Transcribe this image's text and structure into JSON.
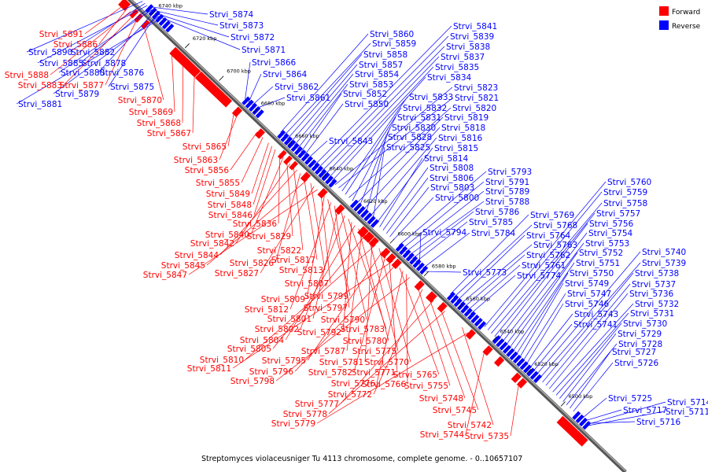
{
  "caption": "Streptomyces violaceusniger Tu 4113 chromosome, complete genome. - 0..10657107",
  "legend": [
    {
      "label": "Forward",
      "color": "#ff0000"
    },
    {
      "label": "Reverse",
      "color": "#0000ff"
    }
  ],
  "colors": {
    "forward": "#ff0000",
    "reverse": "#0000ff",
    "axis": "#888888"
  },
  "scale_ticks": [
    "6740 kbp",
    "6720 kbp",
    "6700 kbp",
    "6680 kbp",
    "6660 kbp",
    "6640 kbp",
    "6620 kbp",
    "6600 kbp",
    "6580 kbp",
    "6560 kbp",
    "6540 kbp",
    "6520 kbp",
    "6500 kbp"
  ],
  "forward_labels": [
    "Strvi_5891",
    "Strvi_5886",
    "Strvi_5888",
    "Strvi_5883",
    "Strvi_5877",
    "Strvi_5870",
    "Strvi_5869",
    "Strvi_5868",
    "Strvi_5867",
    "Strvi_5865",
    "Strvi_5863",
    "Strvi_5856",
    "Strvi_5855",
    "Strvi_5849",
    "Strvi_5848",
    "Strvi_5846",
    "Strvi_5836",
    "Strvi_5840",
    "Strvi_5829",
    "Strvi_5842",
    "Strvi_5822",
    "Strvi_5844",
    "Strvi_5826",
    "Strvi_5817",
    "Strvi_5845",
    "Strvi_5813",
    "Strvi_5827",
    "Strvi_5847",
    "Strvi_5807",
    "Strvi_5809",
    "Strvi_5799",
    "Strvi_5812",
    "Strvi_5797",
    "Strvi_5801",
    "Strvi_5790",
    "Strvi_5802",
    "Strvi_5783",
    "Strvi_5792",
    "Strvi_5804",
    "Strvi_5780",
    "Strvi_5787",
    "Strvi_5805",
    "Strvi_5775",
    "Strvi_5781",
    "Strvi_5810",
    "Strvi_5770",
    "Strvi_5795",
    "Strvi_5782",
    "Strvi_5771",
    "Strvi_5811",
    "Strvi_5796",
    "Strvi_5765",
    "Strvi_5776",
    "Strvi_5766",
    "Strvi_5798",
    "Strvi_5755",
    "Strvi_5772",
    "Strvi_5748",
    "Strvi_5777",
    "Strvi_5745",
    "Strvi_5778",
    "Strvi_5742",
    "Strvi_5779",
    "Strvi_5744",
    "Strvi_5735"
  ],
  "reverse_labels": [
    "Strvi_5874",
    "Strvi_5873",
    "Strvi_5872",
    "Strvi_5871",
    "Strvi_5890",
    "Strvi_5882",
    "Strvi_5885",
    "Strvi_5878",
    "Strvi_5880",
    "Strvi_5876",
    "Strvi_5875",
    "Strvi_5879",
    "Strvi_5881",
    "Strvi_5866",
    "Strvi_5864",
    "Strvi_5862",
    "Strvi_5861",
    "Strvi_5860",
    "Strvi_5859",
    "Strvi_5858",
    "Strvi_5857",
    "Strvi_5854",
    "Strvi_5853",
    "Strvi_5852",
    "Strvi_5850",
    "Strvi_5843",
    "Strvi_5841",
    "Strvi_5839",
    "Strvi_5838",
    "Strvi_5837",
    "Strvi_5835",
    "Strvi_5834",
    "Strvi_5823",
    "Strvi_5821",
    "Strvi_5833",
    "Strvi_5832",
    "Strvi_5820",
    "Strvi_5831",
    "Strvi_5819",
    "Strvi_5830",
    "Strvi_5818",
    "Strvi_5828",
    "Strvi_5816",
    "Strvi_5825",
    "Strvi_5815",
    "Strvi_5814",
    "Strvi_5808",
    "Strvi_5806",
    "Strvi_5803",
    "Strvi_5800",
    "Strvi_5793",
    "Strvi_5791",
    "Strvi_5789",
    "Strvi_5788",
    "Strvi_5786",
    "Strvi_5785",
    "Strvi_5794",
    "Strvi_5784",
    "Strvi_5773",
    "Strvi_5769",
    "Strvi_5768",
    "Strvi_5764",
    "Strvi_5763",
    "Strvi_5762",
    "Strvi_5761",
    "Strvi_5774",
    "Strvi_5760",
    "Strvi_5759",
    "Strvi_5758",
    "Strvi_5757",
    "Strvi_5756",
    "Strvi_5754",
    "Strvi_5753",
    "Strvi_5752",
    "Strvi_5751",
    "Strvi_5750",
    "Strvi_5749",
    "Strvi_5747",
    "Strvi_5746",
    "Strvi_5743",
    "Strvi_5741",
    "Strvi_5740",
    "Strvi_5739",
    "Strvi_5738",
    "Strvi_5737",
    "Strvi_5736",
    "Strvi_5732",
    "Strvi_5731",
    "Strvi_5730",
    "Strvi_5729",
    "Strvi_5728",
    "Strvi_5727",
    "Strvi_5726",
    "Strvi_5725",
    "Strvi_5717",
    "Strvi_5716",
    "Strvi_5714",
    "Strvi_5711"
  ]
}
